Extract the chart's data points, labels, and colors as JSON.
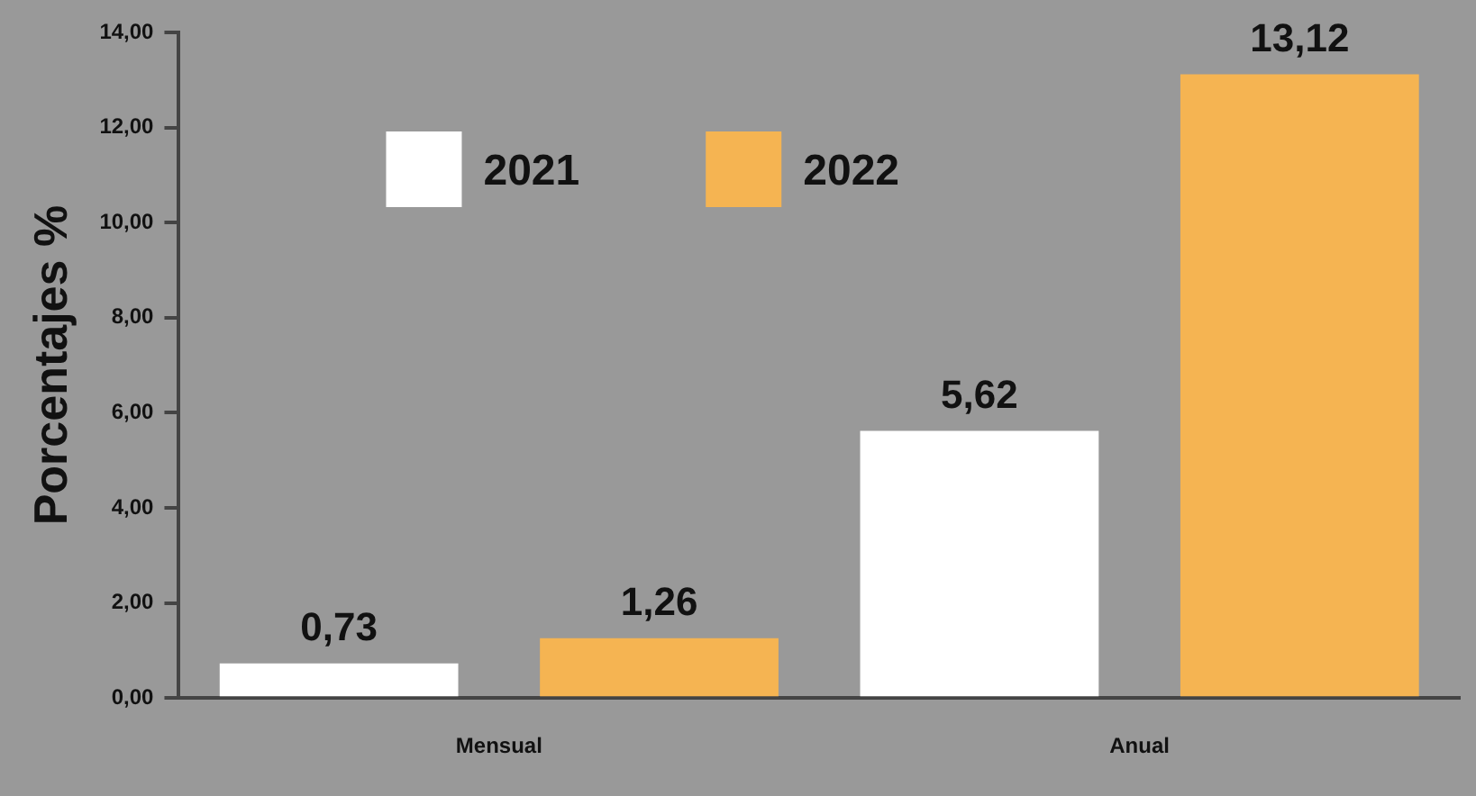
{
  "chart_data": {
    "type": "bar",
    "ylabel": "Porcentajes %",
    "categories": [
      "Mensual",
      "Anual"
    ],
    "series": [
      {
        "name": "2021",
        "color": "#ffffff",
        "values": [
          0.73,
          5.62
        ],
        "value_labels": [
          "0,73",
          "5,62"
        ]
      },
      {
        "name": "2022",
        "color": "#f5b452",
        "values": [
          1.26,
          13.12
        ],
        "value_labels": [
          "1,26",
          "13,12"
        ]
      }
    ],
    "ylim": [
      0,
      14
    ],
    "yticks": [
      {
        "value": 0,
        "label": "0,00"
      },
      {
        "value": 2,
        "label": "2,00"
      },
      {
        "value": 4,
        "label": "4,00"
      },
      {
        "value": 6,
        "label": "6,00"
      },
      {
        "value": 8,
        "label": "8,00"
      },
      {
        "value": 10,
        "label": "10,00"
      },
      {
        "value": 12,
        "label": "12,00"
      },
      {
        "value": 14,
        "label": "14,00"
      }
    ],
    "grid": false,
    "legend": "top left"
  }
}
